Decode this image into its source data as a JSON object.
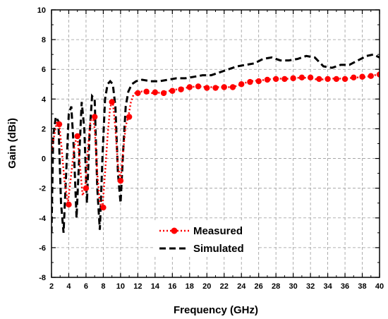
{
  "chart_data": {
    "type": "line",
    "xlabel": "Frequency (GHz)",
    "ylabel": "Gain (dBi)",
    "xlim": [
      2,
      40
    ],
    "ylim": [
      -8,
      10
    ],
    "xticks": [
      2,
      4,
      6,
      8,
      10,
      12,
      14,
      16,
      18,
      20,
      22,
      24,
      26,
      28,
      30,
      32,
      34,
      36,
      38,
      40
    ],
    "yticks": [
      -8,
      -6,
      -4,
      -2,
      0,
      2,
      4,
      6,
      8,
      10
    ],
    "grid": true,
    "legend_position": "bottom-center",
    "series": [
      {
        "name": "Measured",
        "color": "#ff0000",
        "style": "dotted",
        "marker": "circle",
        "x": [
          2.0,
          2.3,
          2.6,
          2.9,
          3.2,
          3.5,
          3.9,
          4.3,
          4.7,
          5.0,
          5.3,
          5.6,
          5.9,
          6.2,
          6.5,
          6.8,
          7.0,
          7.3,
          7.6,
          7.9,
          8.2,
          8.5,
          8.8,
          9.1,
          9.4,
          9.7,
          10.0,
          10.3,
          10.6,
          10.9,
          11.2,
          11.5,
          11.9,
          12.5,
          13.0,
          14.0,
          15.0,
          16.0,
          17.0,
          18.0,
          19.0,
          20.0,
          21.0,
          22.0,
          23.0,
          24.0,
          25.0,
          26.0,
          27.0,
          28.0,
          29.0,
          30.0,
          31.0,
          32.0,
          33.0,
          34.0,
          35.0,
          36.0,
          37.0,
          38.0,
          39.0,
          39.8
        ],
        "y": [
          0.5,
          1.5,
          2.4,
          2.3,
          0.5,
          -1.5,
          -3.0,
          -1.0,
          1.0,
          1.5,
          -0.5,
          -2.5,
          -2.0,
          0.5,
          2.5,
          2.8,
          2.0,
          -1.0,
          -3.0,
          -3.3,
          -1.0,
          1.5,
          3.5,
          3.8,
          2.0,
          -0.5,
          -1.5,
          0.5,
          2.2,
          2.8,
          3.8,
          4.3,
          4.5,
          4.5,
          4.4,
          4.4,
          4.45,
          4.6,
          4.7,
          4.8,
          4.85,
          4.8,
          4.8,
          4.8,
          4.8,
          5.0,
          5.2,
          5.25,
          5.3,
          5.4,
          5.35,
          5.4,
          5.45,
          5.4,
          5.3,
          5.35,
          5.4,
          5.35,
          5.45,
          5.45,
          5.55,
          5.65
        ],
        "markers_x": [
          2.9,
          4.0,
          5.0,
          6.0,
          7.0,
          8.0,
          9.0,
          10.0,
          11.0,
          12.0,
          13.0,
          14.0,
          15.0,
          16.0,
          17.0,
          18.0,
          19.0,
          20.0,
          21.0,
          22.0,
          23.0,
          24.0,
          25.0,
          26.0,
          27.0,
          28.0,
          29.0,
          30.0,
          31.0,
          32.0,
          33.0,
          34.0,
          35.0,
          36.0,
          37.0,
          38.0,
          39.0,
          40.0
        ],
        "markers_y": [
          2.3,
          -3.1,
          1.5,
          -2.0,
          2.8,
          -3.3,
          3.8,
          -1.5,
          2.8,
          4.4,
          4.5,
          4.45,
          4.4,
          4.55,
          4.65,
          4.8,
          4.85,
          4.75,
          4.75,
          4.8,
          4.8,
          5.0,
          5.15,
          5.2,
          5.3,
          5.35,
          5.35,
          5.4,
          5.45,
          5.45,
          5.35,
          5.35,
          5.35,
          5.35,
          5.45,
          5.5,
          5.55,
          5.65
        ]
      },
      {
        "name": "Simulated",
        "color": "#000000",
        "style": "dashed",
        "marker": "none",
        "x": [
          2.0,
          2.2,
          2.5,
          2.8,
          3.1,
          3.4,
          3.7,
          4.0,
          4.3,
          4.6,
          4.9,
          5.2,
          5.5,
          5.8,
          6.1,
          6.4,
          6.7,
          7.0,
          7.3,
          7.6,
          7.9,
          8.2,
          8.5,
          8.8,
          9.1,
          9.4,
          9.7,
          10.0,
          10.3,
          10.6,
          10.9,
          11.3,
          11.8,
          12.5,
          13.5,
          14.5,
          15.5,
          16.5,
          17.5,
          18.5,
          19.5,
          20.5,
          21.5,
          22.5,
          23.5,
          24.5,
          25.5,
          26.5,
          27.5,
          28.5,
          29.5,
          30.5,
          31.5,
          32.5,
          33.5,
          34.5,
          35.5,
          36.5,
          37.5,
          38.5,
          39.3,
          40.0
        ],
        "y": [
          -5.0,
          1.5,
          2.8,
          2.5,
          -3.0,
          -5.0,
          -1.0,
          3.0,
          3.5,
          0.5,
          -4.0,
          0.0,
          3.8,
          2.0,
          -3.0,
          1.5,
          4.2,
          4.0,
          -2.0,
          -4.8,
          0.0,
          4.0,
          5.0,
          5.2,
          5.0,
          3.5,
          -1.0,
          -3.0,
          0.5,
          3.5,
          4.5,
          5.0,
          5.2,
          5.3,
          5.2,
          5.2,
          5.3,
          5.4,
          5.4,
          5.5,
          5.6,
          5.6,
          5.8,
          6.0,
          6.2,
          6.3,
          6.4,
          6.7,
          6.8,
          6.6,
          6.6,
          6.7,
          6.9,
          6.8,
          6.2,
          6.1,
          6.3,
          6.3,
          6.6,
          6.9,
          7.0,
          6.8
        ]
      }
    ]
  }
}
